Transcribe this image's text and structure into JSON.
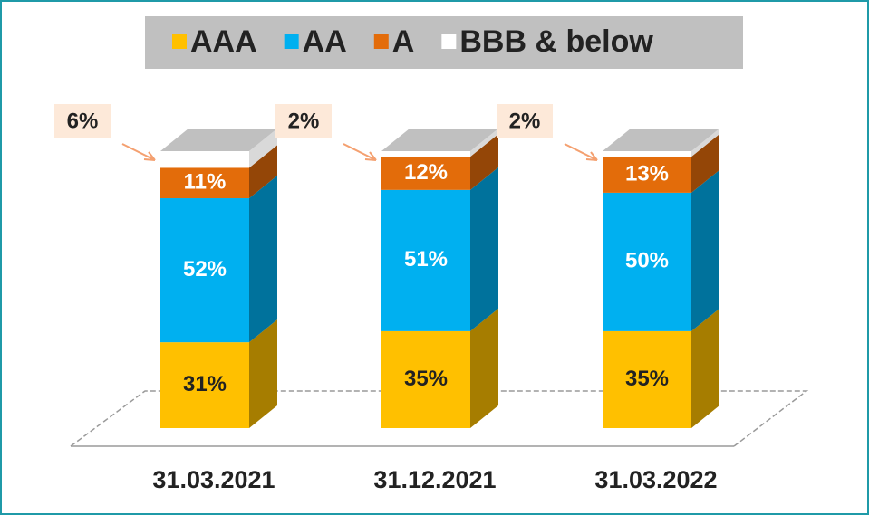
{
  "chart_data": {
    "type": "bar",
    "stacked": true,
    "categories": [
      "31.03.2021",
      "31.12.2021",
      "31.03.2022"
    ],
    "series": [
      {
        "name": "AAA",
        "color": "#ffc000",
        "values": [
          31,
          35,
          35
        ],
        "value_labels": [
          "31%",
          "35%",
          "35%"
        ]
      },
      {
        "name": "AA",
        "color": "#00b0f0",
        "values": [
          52,
          51,
          50
        ],
        "value_labels": [
          "52%",
          "51%",
          "50%"
        ]
      },
      {
        "name": "A",
        "color": "#e36c0a",
        "values": [
          11,
          12,
          13
        ],
        "value_labels": [
          "11%",
          "12%",
          "13%"
        ]
      },
      {
        "name": "BBB & below",
        "color": "#ffffff",
        "values": [
          6,
          2,
          2
        ],
        "value_labels": [
          "6%",
          "2%",
          "2%"
        ]
      }
    ]
  }
}
